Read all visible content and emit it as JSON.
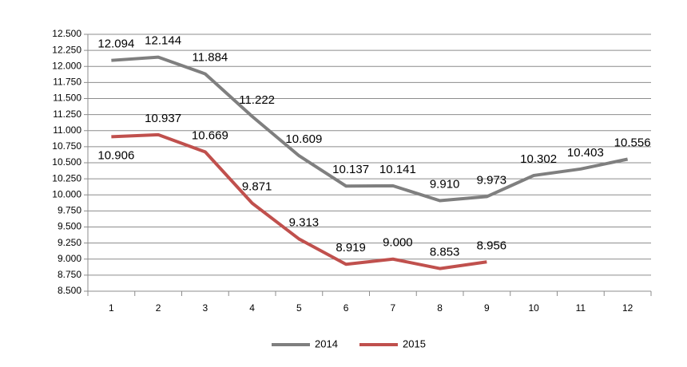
{
  "chart_data": {
    "type": "line",
    "categories": [
      "1",
      "2",
      "3",
      "4",
      "5",
      "6",
      "7",
      "8",
      "9",
      "10",
      "11",
      "12"
    ],
    "series": [
      {
        "name": "2014",
        "color": "#7f7f7f",
        "values": [
          12094,
          12144,
          11884,
          11222,
          10609,
          10137,
          10141,
          9910,
          9973,
          10302,
          10403,
          10556
        ],
        "value_labels": [
          "12.094",
          "12.144",
          "11.884",
          "11.222",
          "10.609",
          "10.137",
          "10.141",
          "9.910",
          "9.973",
          "10.302",
          "10.403",
          "10.556"
        ]
      },
      {
        "name": "2015",
        "color": "#c0504d",
        "values": [
          10906,
          10937,
          10669,
          9871,
          9313,
          8919,
          9000,
          8853,
          8956,
          null,
          null,
          null
        ],
        "value_labels": [
          "10.906",
          "10.937",
          "10.669",
          "9.871",
          "9.313",
          "8.919",
          "9.000",
          "8.853",
          "8.956",
          null,
          null,
          null
        ]
      }
    ],
    "ylim": [
      8500,
      12500
    ],
    "yticks": [
      {
        "value": 8500,
        "label": "8.500"
      },
      {
        "value": 8750,
        "label": "8.750"
      },
      {
        "value": 9000,
        "label": "9.000"
      },
      {
        "value": 9250,
        "label": "9.250"
      },
      {
        "value": 9500,
        "label": "9.500"
      },
      {
        "value": 9750,
        "label": "9.750"
      },
      {
        "value": 10000,
        "label": "10.000"
      },
      {
        "value": 10250,
        "label": "10.250"
      },
      {
        "value": 10500,
        "label": "10.500"
      },
      {
        "value": 10750,
        "label": "10.750"
      },
      {
        "value": 11000,
        "label": "11.000"
      },
      {
        "value": 11250,
        "label": "11.250"
      },
      {
        "value": 11500,
        "label": "11.500"
      },
      {
        "value": 11750,
        "label": "11.750"
      },
      {
        "value": 12000,
        "label": "12.000"
      },
      {
        "value": 12250,
        "label": "12.250"
      },
      {
        "value": 12500,
        "label": "12.500"
      }
    ],
    "grid": true,
    "legend": "bottom"
  }
}
